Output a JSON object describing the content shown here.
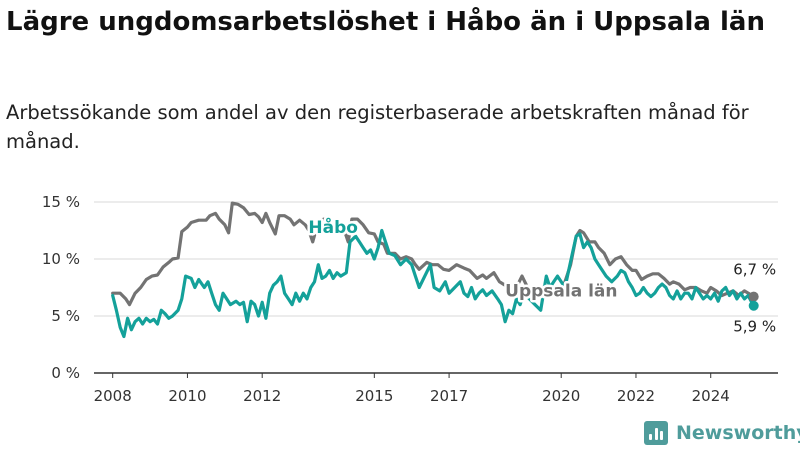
{
  "header": {
    "title": "Lägre ungdomsarbetslöshet i Håbo än i Uppsala län",
    "subtitle": "Arbetssökande som andel av den registerbaserade arbetskraften månad för månad."
  },
  "branding": {
    "logo_text": "Newsworthy",
    "logo_icon": "bar-chart-icon"
  },
  "chart_data": {
    "type": "line",
    "y_tick_labels": [
      "0 %",
      "5 %",
      "10 %",
      "15 %"
    ],
    "y_ticks": [
      0,
      5,
      10,
      15
    ],
    "ylim": [
      0,
      15
    ],
    "x_tick_labels": [
      "2008",
      "2010",
      "2012",
      "2015",
      "2017",
      "2020",
      "2022",
      "2024"
    ],
    "x_ticks": [
      2008,
      2010,
      2012,
      2015,
      2017,
      2020,
      2022,
      2024
    ],
    "xlim": [
      2007.5,
      2025.8
    ],
    "grid": true,
    "series": [
      {
        "name": "Uppsala län",
        "color": "#737373",
        "end_label": "6,7 %",
        "points": [
          [
            2008.0,
            7.0
          ],
          [
            2008.2,
            7.0
          ],
          [
            2008.35,
            6.5
          ],
          [
            2008.45,
            6.0
          ],
          [
            2008.6,
            7.0
          ],
          [
            2008.75,
            7.5
          ],
          [
            2008.9,
            8.2
          ],
          [
            2009.05,
            8.5
          ],
          [
            2009.2,
            8.6
          ],
          [
            2009.35,
            9.3
          ],
          [
            2009.5,
            9.7
          ],
          [
            2009.6,
            10.0
          ],
          [
            2009.75,
            10.1
          ],
          [
            2009.85,
            12.4
          ],
          [
            2010.0,
            12.8
          ],
          [
            2010.1,
            13.2
          ],
          [
            2010.3,
            13.4
          ],
          [
            2010.5,
            13.4
          ],
          [
            2010.6,
            13.8
          ],
          [
            2010.75,
            14.0
          ],
          [
            2010.85,
            13.5
          ],
          [
            2011.0,
            13.0
          ],
          [
            2011.1,
            12.3
          ],
          [
            2011.2,
            14.9
          ],
          [
            2011.35,
            14.8
          ],
          [
            2011.5,
            14.5
          ],
          [
            2011.65,
            13.9
          ],
          [
            2011.8,
            14.0
          ],
          [
            2011.9,
            13.7
          ],
          [
            2012.0,
            13.2
          ],
          [
            2012.1,
            14.0
          ],
          [
            2012.2,
            13.2
          ],
          [
            2012.35,
            12.2
          ],
          [
            2012.45,
            13.8
          ],
          [
            2012.6,
            13.8
          ],
          [
            2012.75,
            13.5
          ],
          [
            2012.85,
            13.0
          ],
          [
            2013.0,
            13.4
          ],
          [
            2013.15,
            13.0
          ],
          [
            2013.25,
            12.5
          ],
          [
            2013.35,
            11.5
          ],
          [
            2013.5,
            13.3
          ],
          [
            2013.65,
            13.5
          ],
          [
            2013.8,
            13.3
          ],
          [
            2013.9,
            12.8
          ],
          [
            2014.0,
            13.0
          ],
          [
            2014.2,
            12.5
          ],
          [
            2014.3,
            11.5
          ],
          [
            2014.4,
            13.5
          ],
          [
            2014.55,
            13.5
          ],
          [
            2014.7,
            13.0
          ],
          [
            2014.85,
            12.3
          ],
          [
            2015.0,
            12.2
          ],
          [
            2015.1,
            11.5
          ],
          [
            2015.25,
            11.3
          ],
          [
            2015.35,
            10.5
          ],
          [
            2015.55,
            10.5
          ],
          [
            2015.7,
            10.0
          ],
          [
            2015.85,
            10.2
          ],
          [
            2016.0,
            10.0
          ],
          [
            2016.1,
            9.5
          ],
          [
            2016.2,
            9.1
          ],
          [
            2016.4,
            9.7
          ],
          [
            2016.55,
            9.5
          ],
          [
            2016.7,
            9.5
          ],
          [
            2016.85,
            9.1
          ],
          [
            2017.0,
            9.0
          ],
          [
            2017.2,
            9.5
          ],
          [
            2017.4,
            9.2
          ],
          [
            2017.55,
            9.0
          ],
          [
            2017.75,
            8.3
          ],
          [
            2017.9,
            8.6
          ],
          [
            2018.0,
            8.3
          ],
          [
            2018.2,
            8.8
          ],
          [
            2018.35,
            8.0
          ],
          [
            2018.5,
            7.7
          ],
          [
            2018.65,
            7.5
          ],
          [
            2018.8,
            7.5
          ],
          [
            2018.95,
            8.5
          ],
          [
            2019.1,
            7.5
          ],
          [
            2019.25,
            7.0
          ],
          [
            2019.4,
            7.5
          ],
          [
            2019.6,
            7.5
          ],
          [
            2019.8,
            7.0
          ],
          [
            2019.95,
            7.2
          ],
          [
            2020.1,
            8.0
          ],
          [
            2020.25,
            9.5
          ],
          [
            2020.4,
            12.0
          ],
          [
            2020.5,
            12.5
          ],
          [
            2020.6,
            12.3
          ],
          [
            2020.75,
            11.5
          ],
          [
            2020.9,
            11.5
          ],
          [
            2021.0,
            11.0
          ],
          [
            2021.15,
            10.5
          ],
          [
            2021.3,
            9.5
          ],
          [
            2021.45,
            10.0
          ],
          [
            2021.6,
            10.2
          ],
          [
            2021.75,
            9.5
          ],
          [
            2021.9,
            9.0
          ],
          [
            2022.0,
            9.0
          ],
          [
            2022.15,
            8.2
          ],
          [
            2022.3,
            8.5
          ],
          [
            2022.45,
            8.7
          ],
          [
            2022.6,
            8.7
          ],
          [
            2022.75,
            8.3
          ],
          [
            2022.9,
            7.8
          ],
          [
            2023.0,
            8.0
          ],
          [
            2023.15,
            7.8
          ],
          [
            2023.3,
            7.3
          ],
          [
            2023.45,
            7.5
          ],
          [
            2023.6,
            7.5
          ],
          [
            2023.75,
            7.2
          ],
          [
            2023.9,
            7.0
          ],
          [
            2024.0,
            7.5
          ],
          [
            2024.15,
            7.2
          ],
          [
            2024.3,
            6.8
          ],
          [
            2024.45,
            7.0
          ],
          [
            2024.6,
            7.2
          ],
          [
            2024.75,
            6.8
          ],
          [
            2024.9,
            7.2
          ],
          [
            2025.05,
            6.9
          ],
          [
            2025.15,
            6.7
          ]
        ]
      },
      {
        "name": "Håbo",
        "color": "#14a19a",
        "end_label": "5,9 %",
        "points": [
          [
            2008.0,
            6.8
          ],
          [
            2008.1,
            5.5
          ],
          [
            2008.2,
            4.0
          ],
          [
            2008.3,
            3.2
          ],
          [
            2008.4,
            4.8
          ],
          [
            2008.5,
            3.8
          ],
          [
            2008.6,
            4.5
          ],
          [
            2008.7,
            4.8
          ],
          [
            2008.8,
            4.3
          ],
          [
            2008.9,
            4.8
          ],
          [
            2009.0,
            4.5
          ],
          [
            2009.1,
            4.7
          ],
          [
            2009.2,
            4.3
          ],
          [
            2009.3,
            5.5
          ],
          [
            2009.4,
            5.2
          ],
          [
            2009.5,
            4.8
          ],
          [
            2009.6,
            5.0
          ],
          [
            2009.75,
            5.5
          ],
          [
            2009.85,
            6.5
          ],
          [
            2009.95,
            8.5
          ],
          [
            2010.1,
            8.3
          ],
          [
            2010.2,
            7.5
          ],
          [
            2010.3,
            8.2
          ],
          [
            2010.45,
            7.5
          ],
          [
            2010.55,
            8.0
          ],
          [
            2010.65,
            7.0
          ],
          [
            2010.75,
            6.0
          ],
          [
            2010.85,
            5.5
          ],
          [
            2010.95,
            7.0
          ],
          [
            2011.05,
            6.5
          ],
          [
            2011.15,
            6.0
          ],
          [
            2011.3,
            6.3
          ],
          [
            2011.4,
            6.0
          ],
          [
            2011.5,
            6.2
          ],
          [
            2011.6,
            4.5
          ],
          [
            2011.7,
            6.3
          ],
          [
            2011.8,
            6.0
          ],
          [
            2011.9,
            5.0
          ],
          [
            2012.0,
            6.2
          ],
          [
            2012.1,
            4.8
          ],
          [
            2012.2,
            7.0
          ],
          [
            2012.3,
            7.7
          ],
          [
            2012.4,
            8.0
          ],
          [
            2012.5,
            8.5
          ],
          [
            2012.6,
            7.0
          ],
          [
            2012.7,
            6.5
          ],
          [
            2012.8,
            6.0
          ],
          [
            2012.9,
            7.0
          ],
          [
            2013.0,
            6.3
          ],
          [
            2013.1,
            7.0
          ],
          [
            2013.2,
            6.5
          ],
          [
            2013.3,
            7.5
          ],
          [
            2013.4,
            8.0
          ],
          [
            2013.5,
            9.5
          ],
          [
            2013.6,
            8.3
          ],
          [
            2013.7,
            8.5
          ],
          [
            2013.8,
            9.0
          ],
          [
            2013.9,
            8.3
          ],
          [
            2014.0,
            8.8
          ],
          [
            2014.1,
            8.5
          ],
          [
            2014.25,
            8.8
          ],
          [
            2014.35,
            11.5
          ],
          [
            2014.5,
            12.0
          ],
          [
            2014.6,
            11.5
          ],
          [
            2014.7,
            11.0
          ],
          [
            2014.8,
            10.5
          ],
          [
            2014.9,
            10.8
          ],
          [
            2015.0,
            10.0
          ],
          [
            2015.1,
            11.0
          ],
          [
            2015.2,
            12.5
          ],
          [
            2015.3,
            11.5
          ],
          [
            2015.4,
            10.5
          ],
          [
            2015.55,
            10.3
          ],
          [
            2015.7,
            9.5
          ],
          [
            2015.85,
            10.0
          ],
          [
            2016.0,
            9.5
          ],
          [
            2016.1,
            8.5
          ],
          [
            2016.2,
            7.5
          ],
          [
            2016.35,
            8.5
          ],
          [
            2016.5,
            9.5
          ],
          [
            2016.6,
            7.5
          ],
          [
            2016.75,
            7.2
          ],
          [
            2016.9,
            8.0
          ],
          [
            2017.0,
            7.0
          ],
          [
            2017.15,
            7.5
          ],
          [
            2017.3,
            8.0
          ],
          [
            2017.4,
            7.0
          ],
          [
            2017.5,
            6.7
          ],
          [
            2017.6,
            7.5
          ],
          [
            2017.7,
            6.5
          ],
          [
            2017.8,
            7.0
          ],
          [
            2017.9,
            7.3
          ],
          [
            2018.0,
            6.8
          ],
          [
            2018.15,
            7.2
          ],
          [
            2018.3,
            6.5
          ],
          [
            2018.4,
            6.0
          ],
          [
            2018.5,
            4.5
          ],
          [
            2018.6,
            5.5
          ],
          [
            2018.7,
            5.2
          ],
          [
            2018.8,
            6.5
          ],
          [
            2018.9,
            6.0
          ],
          [
            2019.0,
            7.0
          ],
          [
            2019.15,
            6.5
          ],
          [
            2019.3,
            6.0
          ],
          [
            2019.45,
            5.5
          ],
          [
            2019.6,
            8.5
          ],
          [
            2019.7,
            7.5
          ],
          [
            2019.8,
            8.0
          ],
          [
            2019.9,
            8.5
          ],
          [
            2020.0,
            8.0
          ],
          [
            2020.1,
            7.5
          ],
          [
            2020.2,
            9.0
          ],
          [
            2020.3,
            10.5
          ],
          [
            2020.4,
            12.0
          ],
          [
            2020.5,
            12.2
          ],
          [
            2020.6,
            11.0
          ],
          [
            2020.7,
            11.5
          ],
          [
            2020.8,
            11.0
          ],
          [
            2020.9,
            10.0
          ],
          [
            2021.0,
            9.5
          ],
          [
            2021.1,
            9.0
          ],
          [
            2021.2,
            8.5
          ],
          [
            2021.35,
            8.0
          ],
          [
            2021.5,
            8.5
          ],
          [
            2021.6,
            9.0
          ],
          [
            2021.7,
            8.8
          ],
          [
            2021.8,
            8.0
          ],
          [
            2021.9,
            7.5
          ],
          [
            2022.0,
            6.8
          ],
          [
            2022.1,
            7.0
          ],
          [
            2022.2,
            7.5
          ],
          [
            2022.3,
            7.0
          ],
          [
            2022.4,
            6.7
          ],
          [
            2022.5,
            7.0
          ],
          [
            2022.6,
            7.5
          ],
          [
            2022.7,
            7.8
          ],
          [
            2022.8,
            7.5
          ],
          [
            2022.9,
            6.8
          ],
          [
            2023.0,
            6.5
          ],
          [
            2023.1,
            7.2
          ],
          [
            2023.2,
            6.5
          ],
          [
            2023.3,
            7.0
          ],
          [
            2023.4,
            7.0
          ],
          [
            2023.5,
            6.5
          ],
          [
            2023.6,
            7.5
          ],
          [
            2023.7,
            7.0
          ],
          [
            2023.8,
            6.5
          ],
          [
            2023.9,
            6.8
          ],
          [
            2024.0,
            6.5
          ],
          [
            2024.1,
            7.0
          ],
          [
            2024.2,
            6.3
          ],
          [
            2024.3,
            7.2
          ],
          [
            2024.4,
            7.5
          ],
          [
            2024.5,
            6.8
          ],
          [
            2024.6,
            7.2
          ],
          [
            2024.7,
            6.5
          ],
          [
            2024.8,
            7.0
          ],
          [
            2024.9,
            6.5
          ],
          [
            2025.0,
            6.8
          ],
          [
            2025.1,
            6.2
          ],
          [
            2025.15,
            5.9
          ]
        ]
      }
    ]
  }
}
